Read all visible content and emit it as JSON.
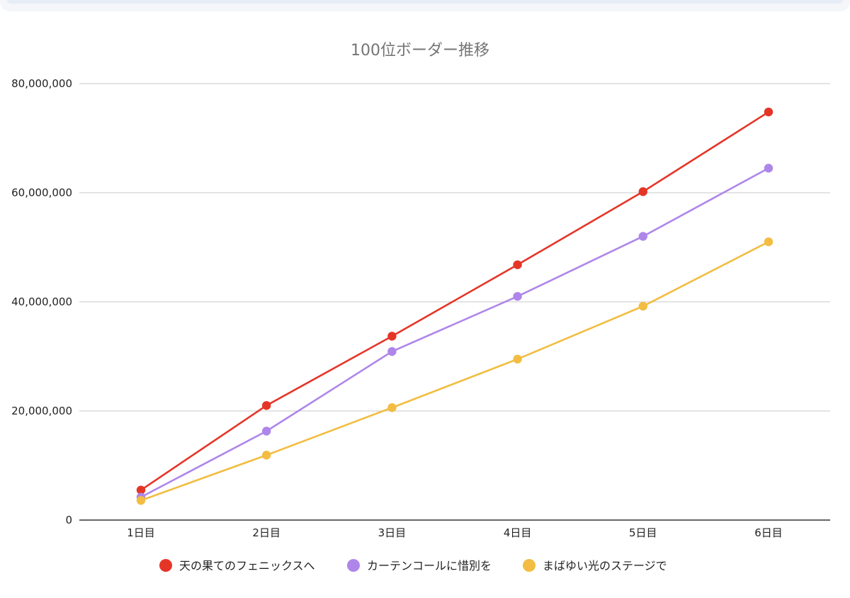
{
  "chart_data": {
    "type": "line",
    "title": "100位ボーダー推移",
    "xlabel": "",
    "ylabel": "",
    "categories": [
      "1日目",
      "2日目",
      "3日目",
      "4日目",
      "5日目",
      "6日目"
    ],
    "ylim": [
      0,
      80000000
    ],
    "yticks": [
      0,
      20000000,
      40000000,
      60000000,
      80000000
    ],
    "ytick_labels": [
      "0",
      "20,000,000",
      "40,000,000",
      "60,000,000",
      "80,000,000"
    ],
    "grid": true,
    "legend_position": "bottom",
    "series": [
      {
        "name": "天の果てのフェニックスへ",
        "color": "#e53527",
        "values": [
          5500000,
          21000000,
          33700000,
          46800000,
          60200000,
          74800000
        ]
      },
      {
        "name": "カーテンコールに惜別を",
        "color": "#ae86ea",
        "values": [
          4200000,
          16300000,
          30900000,
          41000000,
          52000000,
          64500000
        ]
      },
      {
        "name": "まばゆい光のステージで",
        "color": "#f2bd42",
        "values": [
          3600000,
          11900000,
          20600000,
          29500000,
          39200000,
          51000000
        ]
      }
    ]
  }
}
